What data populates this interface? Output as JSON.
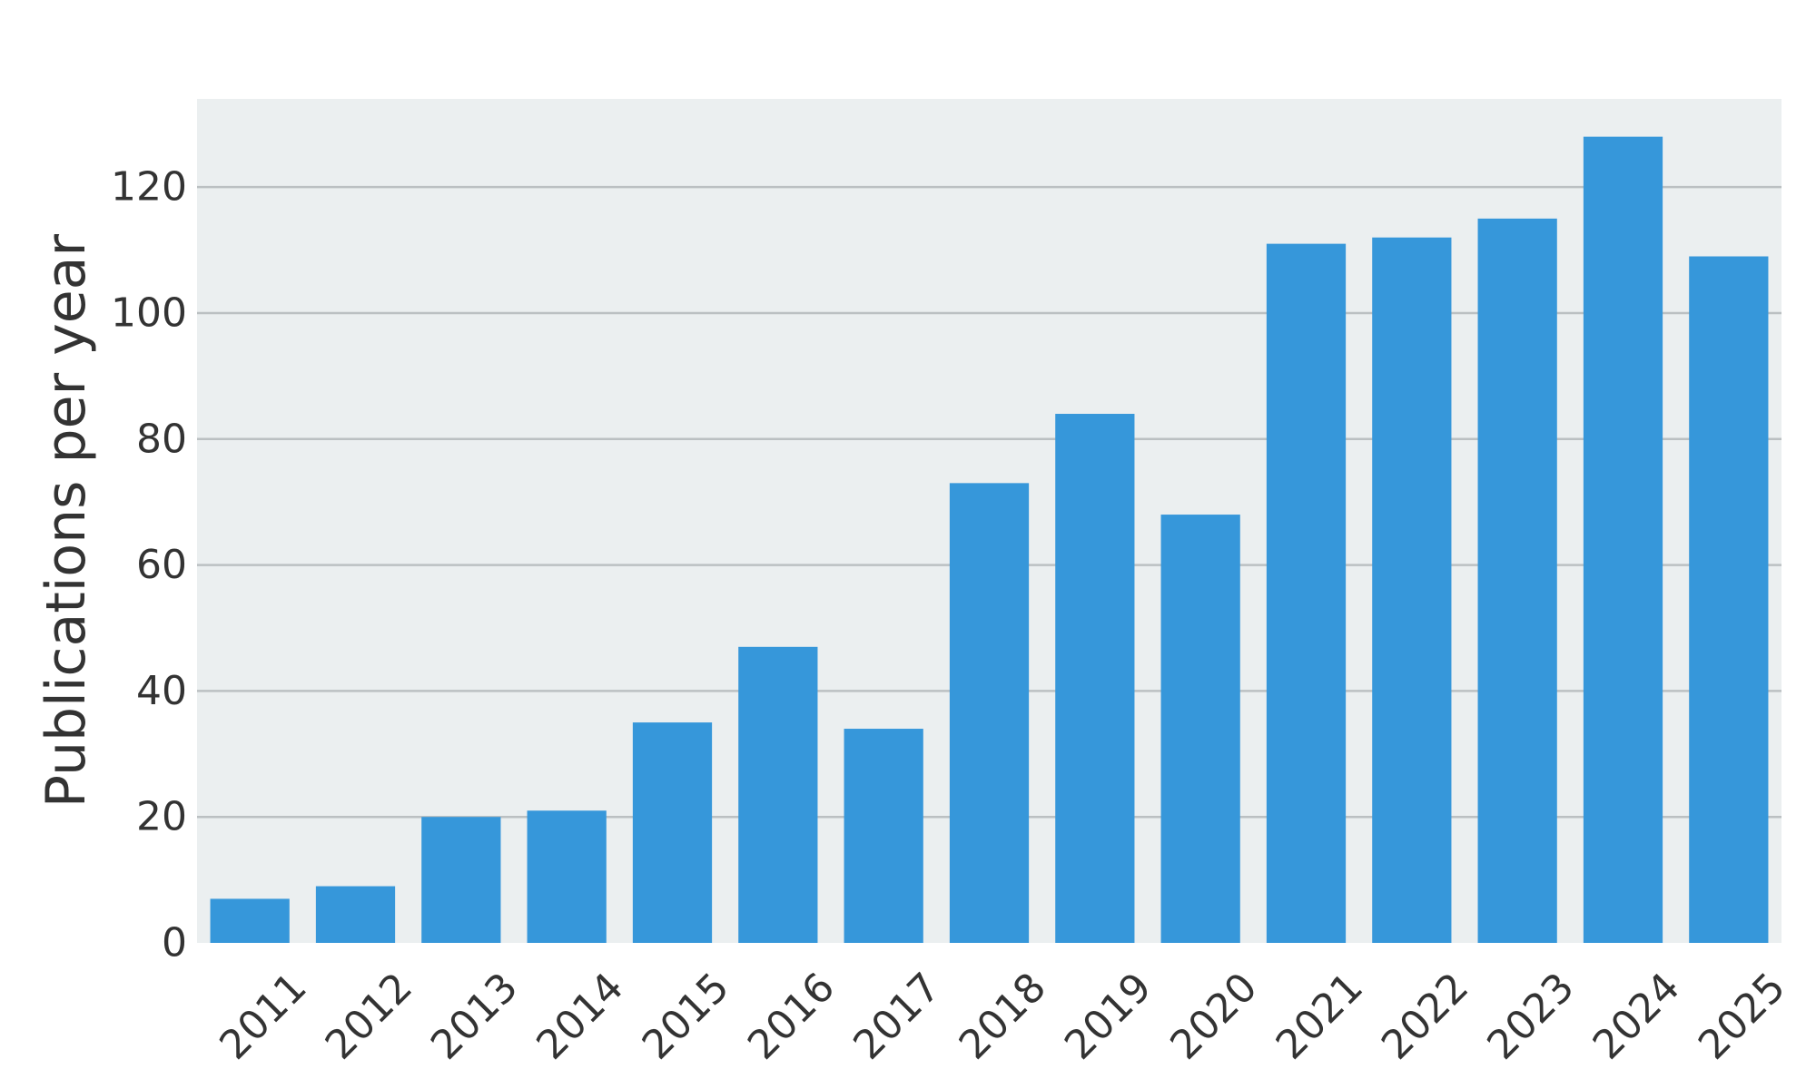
{
  "chart_data": {
    "type": "bar",
    "title": "",
    "xlabel": "",
    "ylabel": "Publications per year",
    "categories": [
      "2011",
      "2012",
      "2013",
      "2014",
      "2015",
      "2016",
      "2017",
      "2018",
      "2019",
      "2020",
      "2021",
      "2022",
      "2023",
      "2024",
      "2025"
    ],
    "values": [
      7,
      9,
      20,
      21,
      35,
      47,
      34,
      73,
      84,
      68,
      111,
      112,
      115,
      128,
      109
    ],
    "ylim": [
      0,
      134
    ],
    "yticks": [
      0,
      20,
      40,
      60,
      80,
      100,
      120
    ],
    "grid": true,
    "legend": "none",
    "colors": {
      "bar": "#3697DA",
      "plot_background": "#EBEFF0",
      "grid": "#BBC0C2",
      "text": "#333333"
    }
  }
}
